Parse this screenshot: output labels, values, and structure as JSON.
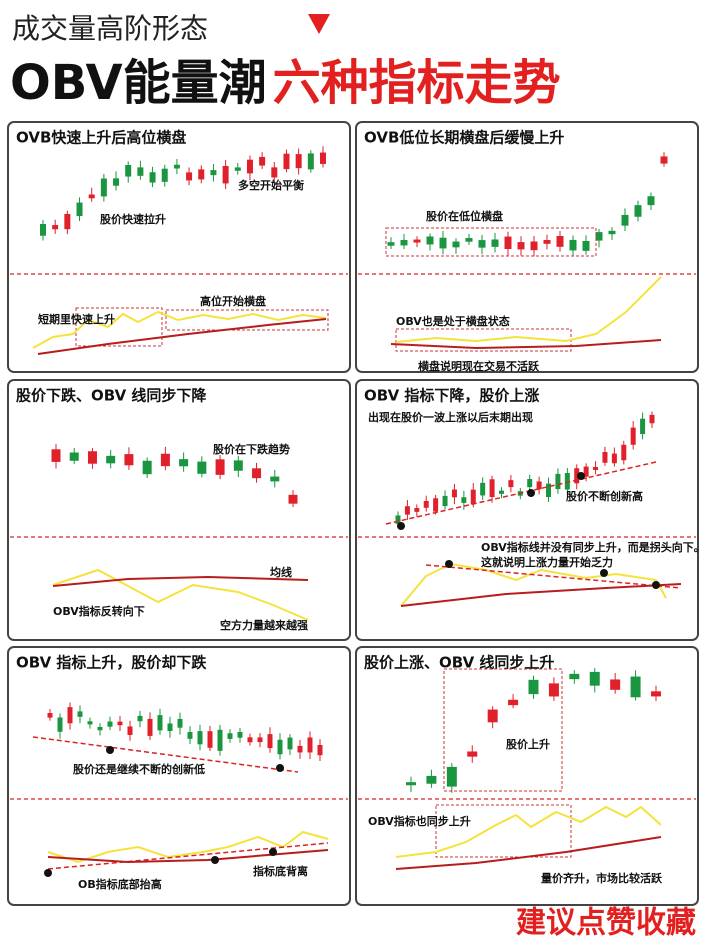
{
  "header": {
    "subtitle": "成交量高阶形态",
    "title_black": "OBV能量潮",
    "title_red": "六种指标走势"
  },
  "panels": [
    {
      "title": "OVB快速上升后高位横盘",
      "labels": [
        "股价快速拉升",
        "多空开始平衡",
        "高位开始横盘",
        "短期里快速上升"
      ]
    },
    {
      "title": "OVB低位长期横盘后缓慢上升",
      "labels": [
        "股价在低位横盘",
        "OBV也是处于横盘状态",
        "横盘说明现在交易不活跃"
      ]
    },
    {
      "title": "股价下跌、OBV 线同步下降",
      "labels": [
        "股价在下跌趋势",
        "均线",
        "OBV指标反转向下",
        "空方力量越来越强"
      ]
    },
    {
      "title": "OBV 指标下降，股价上涨",
      "labels": [
        "出现在股价一波上涨以后末期出现",
        "股价不断创新高",
        "OBV指标线并没有同步上升，而是拐头向下。",
        "这就说明上涨力量开始乏力"
      ]
    },
    {
      "title": "OBV 指标上升，股价却下跌",
      "labels": [
        "股价还是继续不断的创新低",
        "OB指标底部抬高",
        "指标底背离"
      ]
    },
    {
      "title": "股价上涨、OBV 线同步上升",
      "labels": [
        "股价上升",
        "OBV指标也同步上升",
        "量价齐升，市场比较活跃"
      ]
    }
  ],
  "footer": "建议点赞收藏"
}
